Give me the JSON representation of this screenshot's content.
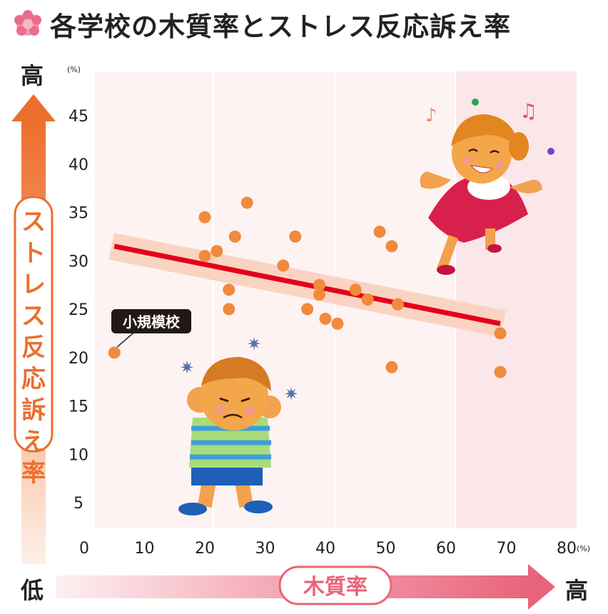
{
  "title": "各学校の木質率とストレス反応訴え率",
  "colors": {
    "accent_orange": "#f08a3c",
    "trend_red": "#e2001a",
    "band": "#fbd3c2",
    "pink": "#e8647a",
    "plot_bg": "#fdf1f1"
  },
  "chart_data": {
    "type": "scatter",
    "title": "各学校の木質率とストレス反応訴え率",
    "xlabel": "木質率",
    "ylabel": "ストレス反応訴え率",
    "x_unit": "(%)",
    "y_unit": "(%)",
    "xlim": [
      0,
      80
    ],
    "ylim": [
      2.5,
      48
    ],
    "x_ticks": [
      0,
      10,
      20,
      30,
      40,
      50,
      60,
      70,
      80
    ],
    "y_ticks": [
      5,
      10,
      15,
      20,
      25,
      30,
      35,
      40,
      45
    ],
    "axis_low_label": "低",
    "y_high_label": "高",
    "x_high_label": "高",
    "x_tick_labels": [
      "0",
      "10",
      "20",
      "30",
      "40",
      "50",
      "60",
      "70",
      "80"
    ],
    "y_tick_labels": [
      "5",
      "10",
      "15",
      "20",
      "25",
      "30",
      "35",
      "40",
      "45"
    ],
    "points": [
      {
        "x": 5,
        "y": 20.5
      },
      {
        "x": 20,
        "y": 34.5
      },
      {
        "x": 20,
        "y": 30.5
      },
      {
        "x": 22,
        "y": 31
      },
      {
        "x": 24,
        "y": 27
      },
      {
        "x": 25,
        "y": 32.5
      },
      {
        "x": 24,
        "y": 25
      },
      {
        "x": 27,
        "y": 36
      },
      {
        "x": 33,
        "y": 29.5
      },
      {
        "x": 35,
        "y": 32.5
      },
      {
        "x": 37,
        "y": 25
      },
      {
        "x": 39,
        "y": 27.5
      },
      {
        "x": 39,
        "y": 26.5
      },
      {
        "x": 40,
        "y": 24
      },
      {
        "x": 42,
        "y": 23.5
      },
      {
        "x": 45,
        "y": 27
      },
      {
        "x": 47,
        "y": 26
      },
      {
        "x": 49,
        "y": 33
      },
      {
        "x": 51,
        "y": 31.5
      },
      {
        "x": 51,
        "y": 19
      },
      {
        "x": 52,
        "y": 25.5
      },
      {
        "x": 69,
        "y": 22.5
      },
      {
        "x": 69,
        "y": 18.5
      }
    ],
    "trend_line": {
      "x": [
        5,
        69
      ],
      "y": [
        31.5,
        23.5
      ]
    },
    "annotation": {
      "text": "小規模校",
      "point_index": 0
    },
    "grid": false
  }
}
